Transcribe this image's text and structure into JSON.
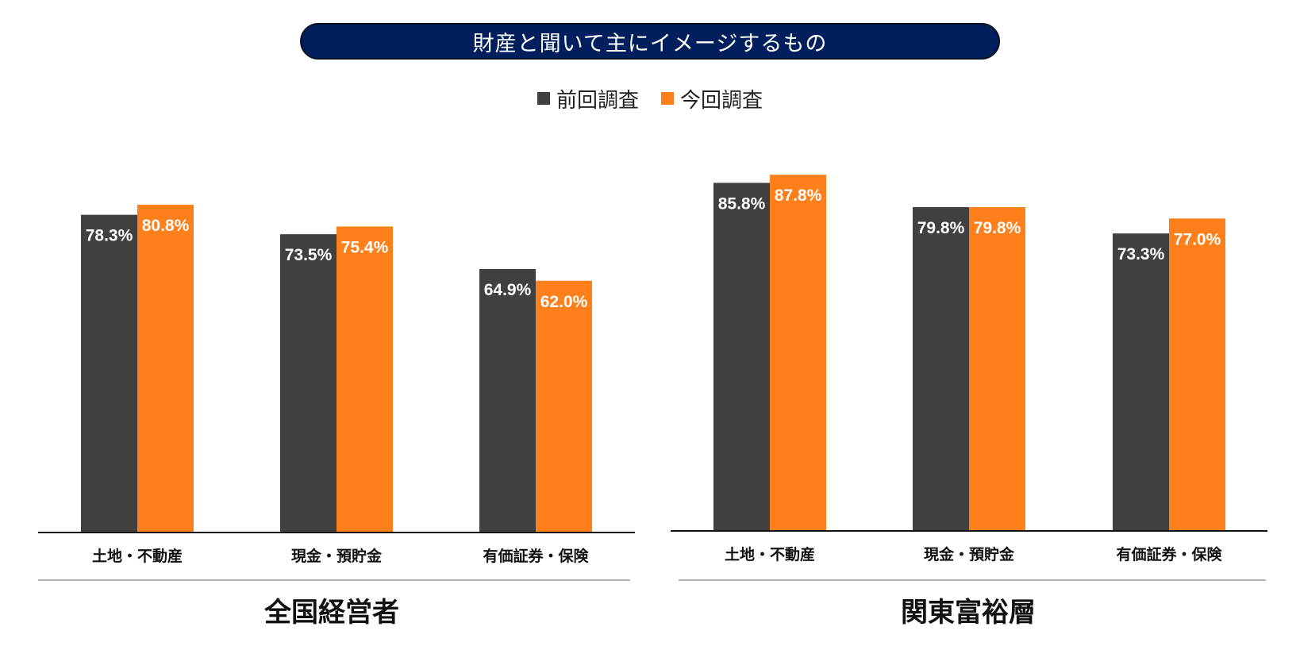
{
  "title": "財産と聞いて主にイメージするもの",
  "colors": {
    "previous": "#404040",
    "current": "#ff7f1a",
    "title_bg": "#001f5c"
  },
  "legend": [
    {
      "key": "previous",
      "label": "前回調査"
    },
    {
      "key": "current",
      "label": "今回調査"
    }
  ],
  "chart_data": [
    {
      "type": "bar",
      "title": "全国経営者",
      "categories": [
        "土地・不動産",
        "現金・預貯金",
        "有価証券・保険"
      ],
      "series": [
        {
          "name": "前回調査",
          "values": [
            78.3,
            73.5,
            64.9
          ]
        },
        {
          "name": "今回調査",
          "values": [
            80.8,
            75.4,
            62.0
          ]
        }
      ],
      "labels": [
        [
          "78.3%",
          "73.5%",
          "64.9%"
        ],
        [
          "80.8%",
          "75.4%",
          "62.0%"
        ]
      ],
      "ylim": [
        0,
        100
      ]
    },
    {
      "type": "bar",
      "title": "関東富裕層",
      "categories": [
        "土地・不動産",
        "現金・預貯金",
        "有価証券・保険"
      ],
      "series": [
        {
          "name": "前回調査",
          "values": [
            85.8,
            79.8,
            73.3
          ]
        },
        {
          "name": "今回調査",
          "values": [
            87.8,
            79.8,
            77.0
          ]
        }
      ],
      "labels": [
        [
          "85.8%",
          "79.8%",
          "73.3%"
        ],
        [
          "87.8%",
          "79.8%",
          "77.0%"
        ]
      ],
      "ylim": [
        0,
        100
      ]
    }
  ]
}
